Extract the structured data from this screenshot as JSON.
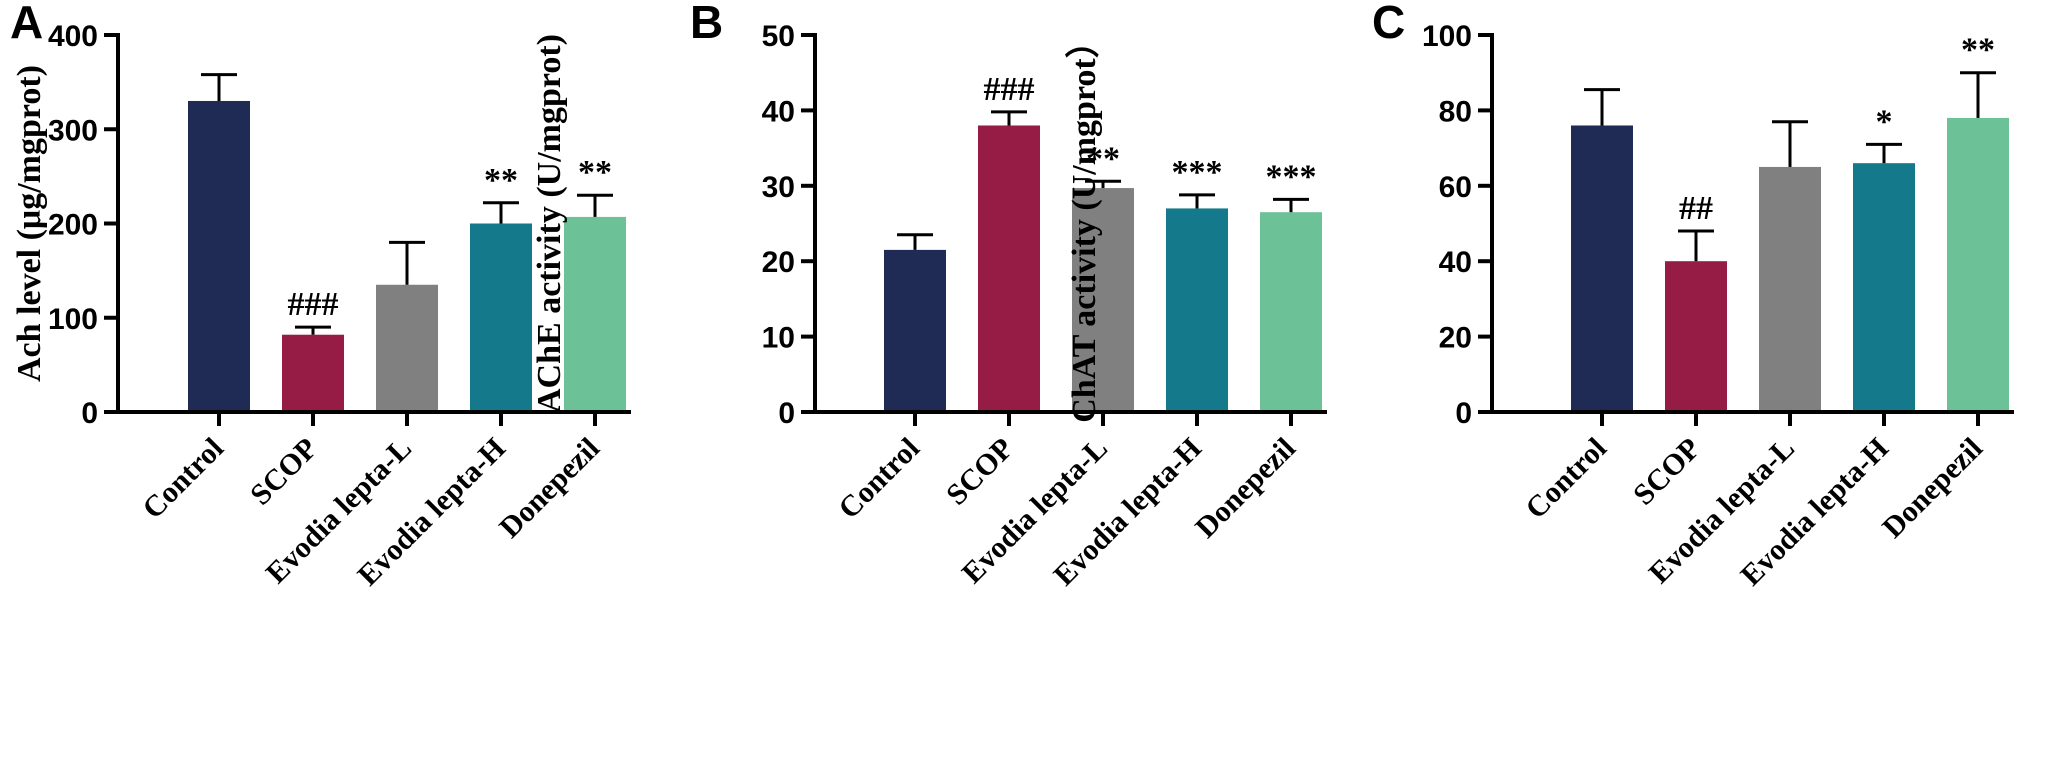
{
  "categories": [
    "Control",
    "SCOP",
    "Evodia lepta-L",
    "Evodia lepta-H",
    "Donepezil"
  ],
  "colors": [
    "#1f2a55",
    "#961c45",
    "#808080",
    "#15798c",
    "#6cc196"
  ],
  "chart_data": [
    {
      "type": "bar",
      "panel": "A",
      "ylabel": "Ach level (μg/mgprot)",
      "ylim": [
        0,
        400
      ],
      "yticks": [
        0,
        100,
        200,
        300,
        400
      ],
      "categories": [
        "Control",
        "SCOP",
        "Evodia lepta-L",
        "Evodia lepta-H",
        "Donepezil"
      ],
      "values": [
        330,
        82,
        135,
        200,
        207
      ],
      "errors": [
        28,
        8,
        45,
        22,
        23
      ],
      "annotations": [
        "",
        "###",
        "",
        "**",
        "**"
      ]
    },
    {
      "type": "bar",
      "panel": "B",
      "ylabel": "AChE activity (U/mgprot)",
      "ylim": [
        0,
        50
      ],
      "yticks": [
        0,
        10,
        20,
        30,
        40,
        50
      ],
      "categories": [
        "Control",
        "SCOP",
        "Evodia lepta-L",
        "Evodia lepta-H",
        "Donepezil"
      ],
      "values": [
        21.5,
        38,
        29.7,
        27,
        26.5
      ],
      "errors": [
        2,
        1.8,
        0.9,
        1.8,
        1.7
      ],
      "annotations": [
        "",
        "###",
        "**",
        "***",
        "***"
      ]
    },
    {
      "type": "bar",
      "panel": "C",
      "ylabel": "ChAT activity (U/mgprot）",
      "ylim": [
        0,
        100
      ],
      "yticks": [
        0,
        20,
        40,
        60,
        80,
        100
      ],
      "categories": [
        "Control",
        "SCOP",
        "Evodia lepta-L",
        "Evodia lepta-H",
        "Donepezil"
      ],
      "values": [
        76,
        40,
        65,
        66,
        78
      ],
      "errors": [
        9.5,
        8,
        12,
        5,
        12
      ],
      "annotations": [
        "",
        "##",
        "",
        "*",
        "**"
      ]
    }
  ]
}
